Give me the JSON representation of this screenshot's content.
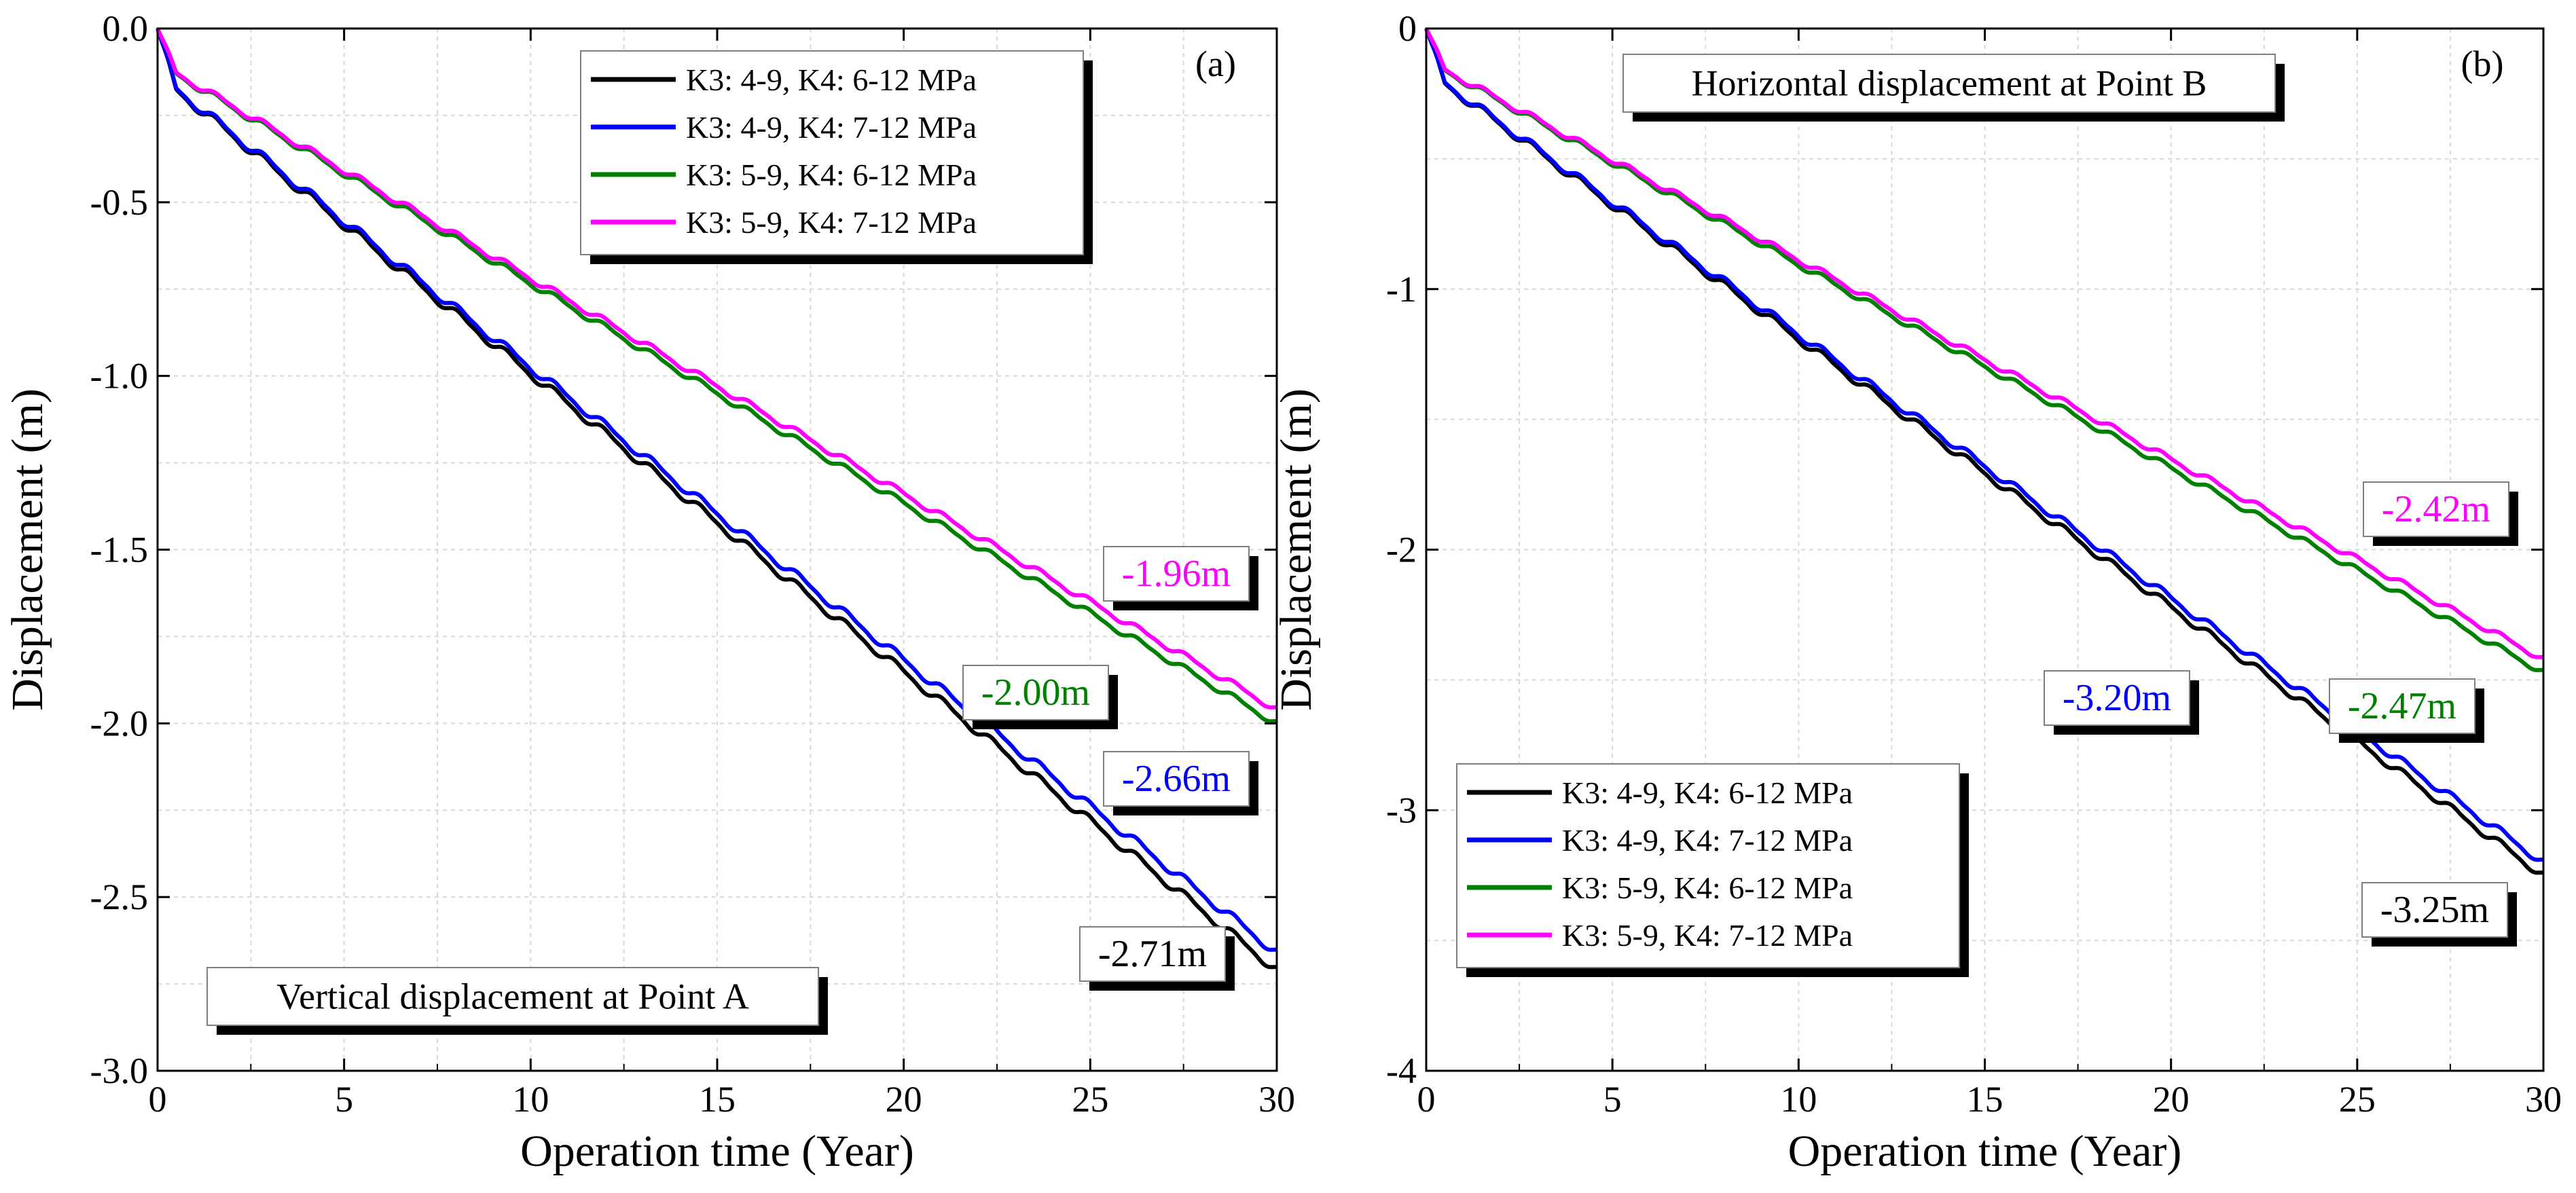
{
  "chart_data": [
    {
      "type": "line",
      "panel_label": "(a)",
      "title": "Vertical displacement at Point A",
      "xlabel": "Operation time (Year)",
      "ylabel": "Displacement (m)",
      "xlim": [
        0,
        30
      ],
      "ylim": [
        -3.0,
        0.0
      ],
      "xticks": [
        "0",
        "5",
        "10",
        "15",
        "20",
        "25",
        "30"
      ],
      "yticks": [
        "0.0",
        "-0.5",
        "-1.0",
        "-1.5",
        "-2.0",
        "-2.5",
        "-3.0"
      ],
      "grid": true,
      "legend_position": "top-right",
      "series": [
        {
          "name": "K3: 4-9, K4: 6-12 MPa",
          "color": "#000000",
          "final_value": -2.71,
          "annotation": "-2.71m"
        },
        {
          "name": "K3: 4-9, K4: 7-12 MPa",
          "color": "#0000ff",
          "final_value": -2.66,
          "annotation": "-2.66m"
        },
        {
          "name": "K3: 5-9, K4: 6-12 MPa",
          "color": "#008000",
          "final_value": -2.0,
          "annotation": "-2.00m"
        },
        {
          "name": "K3: 5-9, K4: 7-12 MPa",
          "color": "#ff00ff",
          "final_value": -1.96,
          "annotation": "-1.96m"
        }
      ]
    },
    {
      "type": "line",
      "panel_label": "(b)",
      "title": "Horizontal displacement at Point B",
      "xlabel": "Operation time (Year)",
      "ylabel": "Displacement (m)",
      "xlim": [
        0,
        30
      ],
      "ylim": [
        -4,
        0
      ],
      "xticks": [
        "0",
        "5",
        "10",
        "15",
        "20",
        "25",
        "30"
      ],
      "yticks": [
        "0",
        "-1",
        "-2",
        "-3",
        "-4"
      ],
      "grid": true,
      "legend_position": "bottom-left",
      "series": [
        {
          "name": "K3: 4-9, K4: 6-12 MPa",
          "color": "#000000",
          "final_value": -3.25,
          "annotation": "-3.25m"
        },
        {
          "name": "K3: 4-9, K4: 7-12 MPa",
          "color": "#0000ff",
          "final_value": -3.2,
          "annotation": "-3.20m"
        },
        {
          "name": "K3: 5-9, K4: 6-12 MPa",
          "color": "#008000",
          "final_value": -2.47,
          "annotation": "-2.47m"
        },
        {
          "name": "K3: 5-9, K4: 7-12 MPa",
          "color": "#ff00ff",
          "final_value": -2.42,
          "annotation": "-2.42m"
        }
      ]
    }
  ]
}
